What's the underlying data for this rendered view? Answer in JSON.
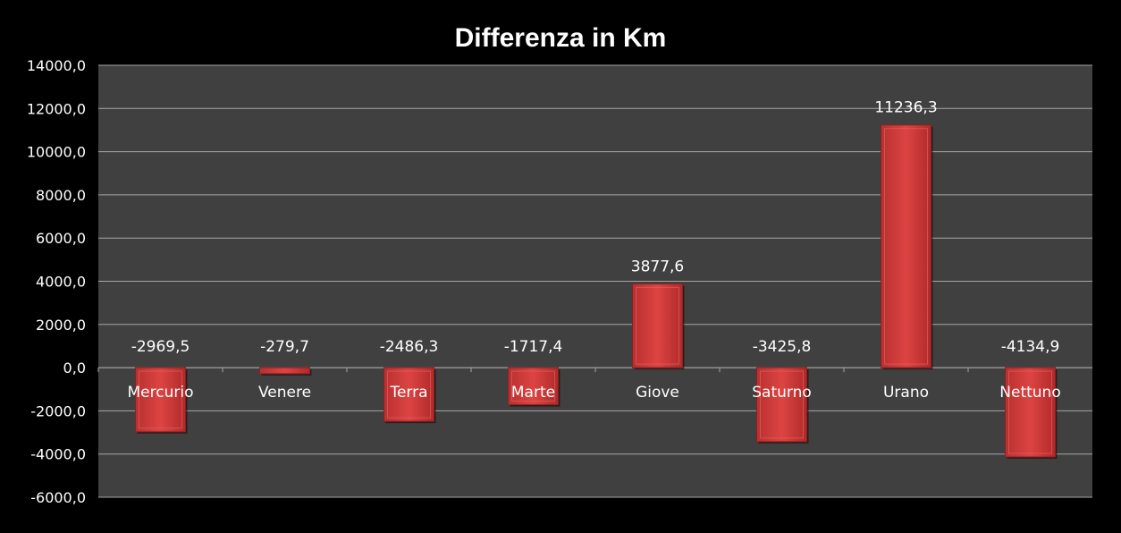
{
  "chart_data": {
    "type": "bar",
    "title": "Differenza in Km",
    "categories": [
      "Mercurio",
      "Venere",
      "Terra",
      "Marte",
      "Giove",
      "Saturno",
      "Urano",
      "Nettuno"
    ],
    "values": [
      -2969.5,
      -279.7,
      -2486.3,
      -1717.4,
      3877.6,
      -3425.8,
      11236.3,
      -4134.9
    ],
    "data_labels": [
      "-2969,5",
      "-279,7",
      "-2486,3",
      "-1717,4",
      "3877,6",
      "-3425,8",
      "11236,3",
      "-4134,9"
    ],
    "ylim": [
      -6000,
      14000
    ],
    "yticks": [
      -6000,
      -4000,
      -2000,
      0,
      2000,
      4000,
      6000,
      8000,
      10000,
      12000,
      14000
    ],
    "ytick_labels": [
      "-6000,0",
      "-4000,0",
      "-2000,0",
      "0,0",
      "2000,0",
      "4000,0",
      "6000,0",
      "8000,0",
      "10000,0",
      "12000,0",
      "14000,0"
    ],
    "grid": true,
    "legend": "none",
    "colors": {
      "bar": "#d9403f",
      "plot_bg": "#404040",
      "background": "#000000",
      "grid": "#a6a6a6"
    }
  }
}
